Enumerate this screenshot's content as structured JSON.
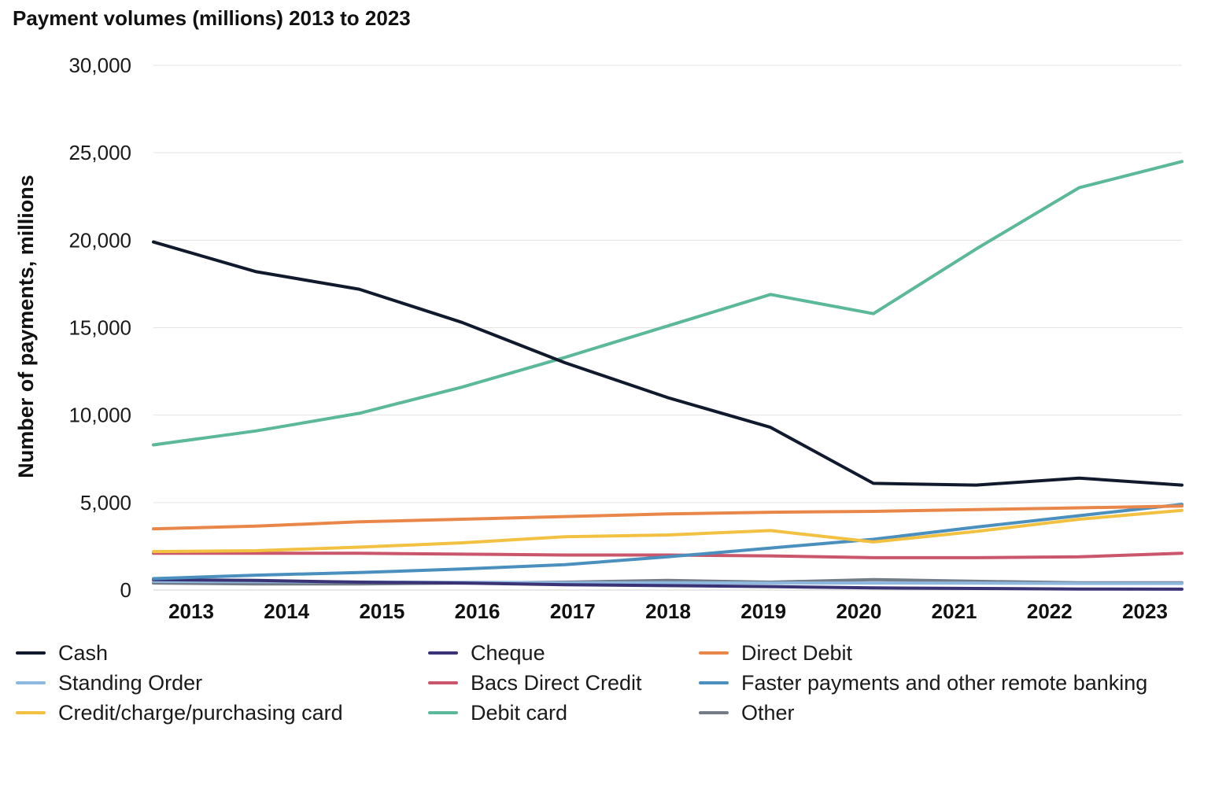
{
  "chart_data": {
    "type": "line",
    "title": "Payment volumes (millions) 2013 to 2023",
    "ylabel": "Number of payments, millions",
    "xlabel": "",
    "ylim": [
      0,
      30000
    ],
    "yticks": [
      "0",
      "5,000",
      "10,000",
      "15,000",
      "20,000",
      "25,000",
      "30,000"
    ],
    "x": [
      "2013",
      "2014",
      "2015",
      "2016",
      "2017",
      "2018",
      "2019",
      "2020",
      "2021",
      "2022",
      "2023"
    ],
    "grid": true,
    "legend_position": "bottom",
    "series": [
      {
        "name": "Cash",
        "color": "#111a2c",
        "values": [
          19900,
          18200,
          17200,
          15300,
          13000,
          11000,
          9300,
          6100,
          6000,
          6400,
          6000
        ]
      },
      {
        "name": "Cheque",
        "color": "#3a3477",
        "values": [
          600,
          550,
          450,
          400,
          300,
          250,
          200,
          120,
          90,
          60,
          50
        ]
      },
      {
        "name": "Direct Debit",
        "color": "#e9874a",
        "values": [
          3500,
          3650,
          3900,
          4050,
          4200,
          4350,
          4450,
          4500,
          4600,
          4700,
          4800
        ]
      },
      {
        "name": "Standing Order",
        "color": "#8fb8de",
        "values": [
          500,
          480,
          460,
          440,
          420,
          420,
          400,
          400,
          390,
          380,
          380
        ]
      },
      {
        "name": "Bacs Direct Credit",
        "color": "#c9566a",
        "values": [
          2100,
          2100,
          2100,
          2050,
          2000,
          2000,
          1950,
          1850,
          1850,
          1900,
          2100
        ]
      },
      {
        "name": "Faster payments and other remote banking",
        "color": "#4a8fbd",
        "values": [
          650,
          850,
          1000,
          1200,
          1450,
          1900,
          2400,
          2900,
          3600,
          4250,
          4900
        ]
      },
      {
        "name": "Credit/charge/purchasing card",
        "color": "#f2c142",
        "values": [
          2200,
          2250,
          2450,
          2700,
          3050,
          3150,
          3400,
          2750,
          3350,
          4050,
          4550
        ]
      },
      {
        "name": "Debit card",
        "color": "#5cb89a",
        "values": [
          8300,
          9100,
          10100,
          11600,
          13300,
          15100,
          16900,
          15800,
          19500,
          23000,
          24500
        ]
      },
      {
        "name": "Other",
        "color": "#737b87",
        "values": [
          400,
          350,
          350,
          400,
          450,
          550,
          450,
          600,
          500,
          420,
          420
        ]
      }
    ]
  }
}
